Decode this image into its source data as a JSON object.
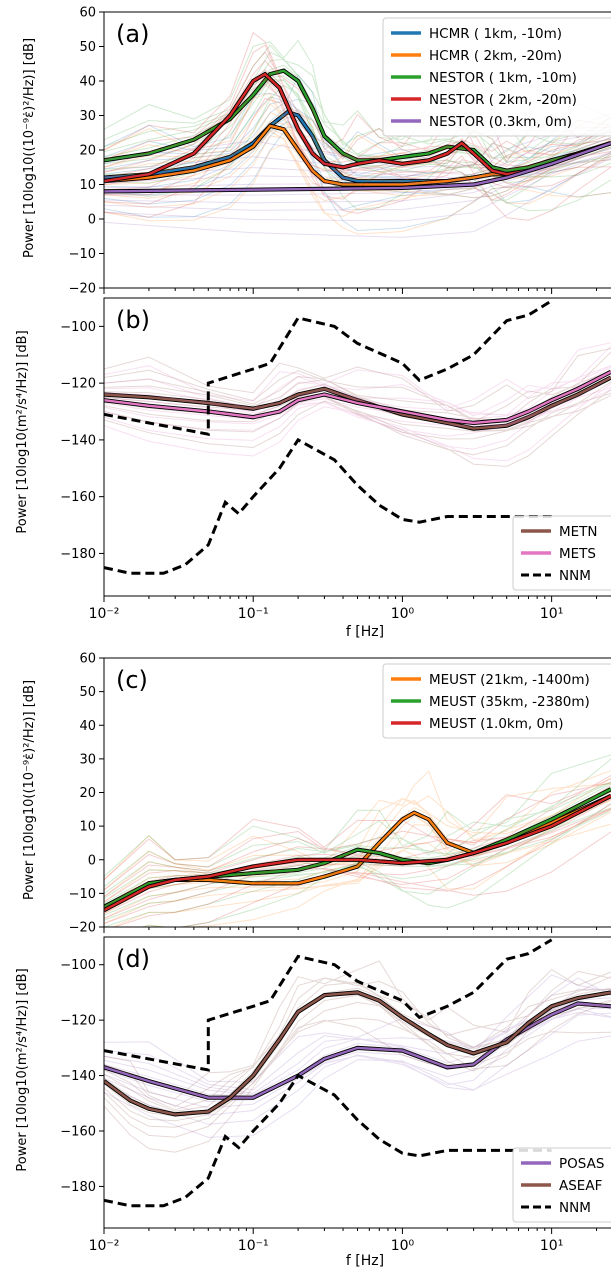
{
  "figure": {
    "xlabel": "f [Hz]",
    "ylabel_strain": "Power [10log10((10⁻⁹ε̇)²/Hz)] [dB]",
    "ylabel_accel": "Power [10log10(m²/s⁴/Hz)] [dB]"
  },
  "colors": {
    "blue": "#1f77b4",
    "orange": "#ff7f0e",
    "green": "#2ca02c",
    "red": "#d62728",
    "purple": "#9467bd",
    "brown": "#8c564b",
    "pink": "#e377c2",
    "black": "#000000"
  },
  "chart_data": [
    {
      "type": "line",
      "panel_label": "(a)",
      "xscale": "log",
      "xlim": [
        0.01,
        25
      ],
      "ylim": [
        -20,
        60
      ],
      "yticks": [
        -20,
        -10,
        0,
        10,
        20,
        30,
        40,
        50,
        60
      ],
      "legend_position": "top-right",
      "series": [
        {
          "name": "HCMR ( 1km, -10m)",
          "color": "blue",
          "x": [
            0.01,
            0.02,
            0.04,
            0.07,
            0.1,
            0.13,
            0.17,
            0.2,
            0.25,
            0.3,
            0.4,
            0.5,
            1,
            2,
            3,
            4,
            5,
            7,
            10,
            15,
            25
          ],
          "y": [
            12,
            13,
            15,
            18,
            22,
            27,
            31,
            30,
            24,
            17,
            12,
            11,
            11,
            11,
            12,
            13,
            13,
            15,
            17,
            19,
            22
          ]
        },
        {
          "name": "HCMR ( 2km, -20m)",
          "color": "orange",
          "x": [
            0.01,
            0.02,
            0.04,
            0.07,
            0.1,
            0.13,
            0.16,
            0.2,
            0.25,
            0.3,
            0.4,
            0.5,
            1,
            2,
            3,
            4,
            5,
            7,
            10,
            15,
            25
          ],
          "y": [
            11,
            12,
            14,
            17,
            21,
            27,
            26,
            20,
            14,
            11,
            10,
            10,
            10,
            11,
            12,
            13,
            13,
            14,
            16,
            19,
            22
          ]
        },
        {
          "name": "NESTOR ( 1km, -10m)",
          "color": "green",
          "x": [
            0.01,
            0.02,
            0.04,
            0.07,
            0.1,
            0.13,
            0.16,
            0.2,
            0.25,
            0.3,
            0.4,
            0.5,
            0.7,
            1,
            1.5,
            2,
            3,
            4,
            5,
            7,
            10,
            15,
            25
          ],
          "y": [
            17,
            19,
            23,
            29,
            36,
            42,
            43,
            40,
            32,
            24,
            19,
            17,
            17,
            18,
            19,
            21,
            20,
            15,
            14,
            15,
            17,
            19,
            22
          ]
        },
        {
          "name": "NESTOR ( 2km, -20m)",
          "color": "red",
          "x": [
            0.01,
            0.02,
            0.04,
            0.07,
            0.1,
            0.12,
            0.15,
            0.2,
            0.25,
            0.3,
            0.4,
            0.5,
            0.7,
            1,
            1.5,
            2,
            2.5,
            3,
            4,
            5,
            7,
            10,
            15,
            25
          ],
          "y": [
            11,
            13,
            19,
            30,
            40,
            42,
            38,
            26,
            19,
            16,
            15,
            16,
            17,
            16,
            17,
            19,
            22,
            19,
            14,
            13,
            14,
            16,
            19,
            22
          ]
        },
        {
          "name": "NESTOR (0.3km,  0m)",
          "color": "purple",
          "x": [
            0.01,
            0.1,
            1,
            3,
            5,
            10,
            25
          ],
          "y": [
            8,
            8.5,
            9,
            10,
            12,
            16,
            22
          ]
        }
      ]
    },
    {
      "type": "line",
      "panel_label": "(b)",
      "xscale": "log",
      "xlim": [
        0.01,
        25
      ],
      "ylim": [
        -195,
        -90
      ],
      "yticks": [
        -180,
        -160,
        -140,
        -120,
        -100
      ],
      "xticks": [
        "10⁻²",
        "10⁻¹",
        "10⁰",
        "10¹"
      ],
      "legend_position": "bottom-right",
      "series": [
        {
          "name": "METN",
          "color": "brown",
          "x": [
            0.01,
            0.02,
            0.05,
            0.1,
            0.15,
            0.2,
            0.3,
            0.5,
            1,
            2,
            3,
            5,
            7,
            10,
            15,
            25
          ],
          "y": [
            -124,
            -125,
            -127,
            -129,
            -127,
            -124,
            -122,
            -126,
            -131,
            -134,
            -136,
            -135,
            -132,
            -128,
            -124,
            -118
          ]
        },
        {
          "name": "METS",
          "color": "pink",
          "x": [
            0.01,
            0.02,
            0.05,
            0.1,
            0.15,
            0.2,
            0.3,
            0.5,
            1,
            2,
            3,
            5,
            7,
            10,
            15,
            25
          ],
          "y": [
            -126,
            -128,
            -130,
            -132,
            -130,
            -126,
            -124,
            -127,
            -130,
            -133,
            -134,
            -133,
            -130,
            -126,
            -122,
            -116
          ]
        },
        {
          "name": "NNM",
          "color": "black",
          "dashed": true,
          "x": [
            0.01,
            0.05,
            0.05,
            0.1,
            0.13,
            0.2,
            0.35,
            0.5,
            1,
            1.3,
            2,
            3,
            5,
            7,
            10
          ],
          "y": [
            -131,
            -138,
            -120,
            -115,
            -113,
            -97,
            -100,
            -106,
            -113,
            -119,
            -115,
            -110,
            -98,
            -96,
            -91
          ]
        },
        {
          "name": "NNM_low",
          "color": "black",
          "dashed": true,
          "x": [
            0.01,
            0.015,
            0.025,
            0.035,
            0.05,
            0.065,
            0.08,
            0.1,
            0.15,
            0.2,
            0.35,
            0.5,
            0.7,
            1,
            1.3,
            2,
            3,
            5,
            7,
            10
          ],
          "y": [
            -185,
            -187,
            -187,
            -184,
            -177,
            -162,
            -166,
            -160,
            -150,
            -140,
            -147,
            -156,
            -163,
            -168,
            -169,
            -167,
            -167,
            -167,
            -167,
            -167
          ]
        }
      ]
    },
    {
      "type": "line",
      "panel_label": "(c)",
      "xscale": "log",
      "xlim": [
        0.01,
        25
      ],
      "ylim": [
        -20,
        60
      ],
      "yticks": [
        -20,
        -10,
        0,
        10,
        20,
        30,
        40,
        50,
        60
      ],
      "legend_position": "top-right",
      "series": [
        {
          "name": "MEUST (21km, -1400m)",
          "color": "orange",
          "x": [
            0.01,
            0.02,
            0.03,
            0.05,
            0.1,
            0.2,
            0.3,
            0.5,
            0.7,
            1,
            1.2,
            1.5,
            2,
            3,
            5,
            10,
            25
          ],
          "y": [
            -15,
            -7,
            -6,
            -6,
            -7,
            -7,
            -5,
            -2,
            5,
            12,
            14,
            12,
            5,
            2,
            5,
            11,
            19
          ]
        },
        {
          "name": "MEUST (35km, -2380m)",
          "color": "green",
          "x": [
            0.01,
            0.02,
            0.03,
            0.05,
            0.1,
            0.2,
            0.3,
            0.5,
            0.7,
            1,
            1.5,
            2,
            3,
            5,
            10,
            25
          ],
          "y": [
            -14,
            -7,
            -6,
            -5,
            -4,
            -3,
            -1,
            3,
            2,
            0,
            -1,
            0,
            2,
            6,
            12,
            21
          ]
        },
        {
          "name": "MEUST (1.0km,  0m)",
          "color": "red",
          "x": [
            0.01,
            0.02,
            0.03,
            0.05,
            0.1,
            0.2,
            0.3,
            0.5,
            1,
            2,
            3,
            5,
            10,
            25
          ],
          "y": [
            -15,
            -8,
            -6,
            -5,
            -2,
            0,
            0,
            0,
            -1,
            0,
            2,
            5,
            10,
            19
          ]
        }
      ]
    },
    {
      "type": "line",
      "panel_label": "(d)",
      "xscale": "log",
      "xlim": [
        0.01,
        25
      ],
      "ylim": [
        -195,
        -90
      ],
      "yticks": [
        -180,
        -160,
        -140,
        -120,
        -100
      ],
      "xticks": [
        "10⁻²",
        "10⁻¹",
        "10⁰",
        "10¹"
      ],
      "legend_position": "bottom-right",
      "series": [
        {
          "name": "POSAS",
          "color": "purple",
          "x": [
            0.01,
            0.02,
            0.05,
            0.1,
            0.2,
            0.3,
            0.5,
            1,
            2,
            3,
            5,
            10,
            15,
            25
          ],
          "y": [
            -137,
            -142,
            -148,
            -148,
            -140,
            -134,
            -130,
            -131,
            -137,
            -136,
            -127,
            -118,
            -114,
            -115
          ]
        },
        {
          "name": "ASEAF",
          "color": "brown",
          "x": [
            0.01,
            0.015,
            0.02,
            0.03,
            0.05,
            0.07,
            0.1,
            0.15,
            0.2,
            0.3,
            0.5,
            0.7,
            1,
            1.5,
            2,
            3,
            5,
            7,
            10,
            15,
            25
          ],
          "y": [
            -142,
            -149,
            -152,
            -154,
            -153,
            -148,
            -140,
            -127,
            -117,
            -111,
            -110,
            -113,
            -119,
            -125,
            -129,
            -132,
            -128,
            -121,
            -115,
            -112,
            -110
          ]
        },
        {
          "name": "NNM",
          "color": "black",
          "dashed": true,
          "x": [
            0.01,
            0.05,
            0.05,
            0.1,
            0.13,
            0.2,
            0.35,
            0.5,
            1,
            1.3,
            2,
            3,
            5,
            7,
            10
          ],
          "y": [
            -131,
            -138,
            -120,
            -115,
            -113,
            -97,
            -100,
            -106,
            -113,
            -119,
            -115,
            -110,
            -98,
            -96,
            -91
          ]
        },
        {
          "name": "NNM_low",
          "color": "black",
          "dashed": true,
          "x": [
            0.01,
            0.015,
            0.025,
            0.035,
            0.05,
            0.065,
            0.08,
            0.1,
            0.15,
            0.2,
            0.35,
            0.5,
            0.7,
            1,
            1.3,
            2,
            3,
            5,
            7,
            10
          ],
          "y": [
            -185,
            -187,
            -187,
            -184,
            -177,
            -162,
            -166,
            -160,
            -150,
            -140,
            -147,
            -156,
            -163,
            -168,
            -169,
            -167,
            -167,
            -167,
            -167,
            -167
          ]
        }
      ]
    }
  ]
}
